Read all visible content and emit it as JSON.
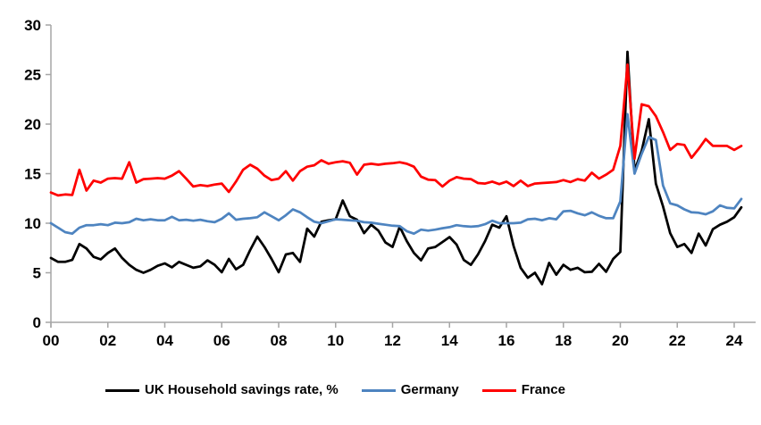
{
  "chart_data": {
    "type": "line",
    "title": "",
    "xlabel": "",
    "ylabel": "",
    "frequency": "quarterly",
    "x_start": "2000Q1",
    "x_end": "2024Q2",
    "x_tick_labels": [
      "00",
      "02",
      "04",
      "06",
      "08",
      "10",
      "12",
      "14",
      "16",
      "18",
      "20",
      "22",
      "24"
    ],
    "y_ticks": [
      0,
      5,
      10,
      15,
      20,
      25,
      30
    ],
    "ylim": [
      0,
      30
    ],
    "grid": false,
    "legend_position": "bottom",
    "axis_color": "#A6A6A6",
    "series": [
      {
        "name": "UK Household savings rate, %",
        "color": "#000000",
        "values": [
          6.5,
          6.1,
          6.1,
          6.3,
          7.9,
          7.45,
          6.6,
          6.35,
          7.0,
          7.45,
          6.5,
          5.8,
          5.3,
          5.0,
          5.3,
          5.7,
          5.95,
          5.55,
          6.1,
          5.8,
          5.5,
          5.65,
          6.25,
          5.8,
          5.05,
          6.4,
          5.35,
          5.8,
          7.3,
          8.65,
          7.6,
          6.4,
          5.05,
          6.85,
          7.0,
          6.1,
          9.45,
          8.65,
          10.15,
          10.3,
          10.4,
          12.3,
          10.7,
          10.35,
          9.0,
          9.85,
          9.25,
          8.05,
          7.6,
          9.65,
          8.2,
          7.0,
          6.25,
          7.45,
          7.6,
          8.1,
          8.6,
          7.85,
          6.3,
          5.8,
          6.85,
          8.2,
          9.85,
          9.55,
          10.7,
          7.7,
          5.5,
          4.5,
          5.0,
          3.85,
          6.0,
          4.8,
          5.8,
          5.3,
          5.5,
          5.05,
          5.1,
          5.9,
          5.1,
          6.4,
          7.1,
          27.3,
          15.3,
          17.3,
          20.5,
          14.0,
          11.7,
          9.0,
          7.6,
          7.9,
          7.0,
          8.95,
          7.75,
          9.4,
          9.85,
          10.15,
          10.6,
          11.6
        ]
      },
      {
        "name": "Germany",
        "color": "#4E84C0",
        "values": [
          10.0,
          9.55,
          9.1,
          8.95,
          9.55,
          9.8,
          9.8,
          9.9,
          9.8,
          10.05,
          10.0,
          10.1,
          10.45,
          10.3,
          10.4,
          10.3,
          10.3,
          10.65,
          10.3,
          10.35,
          10.25,
          10.35,
          10.2,
          10.1,
          10.45,
          11.0,
          10.35,
          10.45,
          10.5,
          10.6,
          11.1,
          10.7,
          10.3,
          10.8,
          11.4,
          11.1,
          10.6,
          10.15,
          10.0,
          10.2,
          10.4,
          10.35,
          10.3,
          10.25,
          10.1,
          10.05,
          9.95,
          9.85,
          9.75,
          9.7,
          9.2,
          8.95,
          9.35,
          9.25,
          9.35,
          9.5,
          9.6,
          9.8,
          9.7,
          9.65,
          9.7,
          9.9,
          10.25,
          10.0,
          10.0,
          10.0,
          10.05,
          10.4,
          10.45,
          10.3,
          10.5,
          10.4,
          11.2,
          11.25,
          11.0,
          10.8,
          11.1,
          10.75,
          10.5,
          10.5,
          12.2,
          21.0,
          15.0,
          17.0,
          18.7,
          18.4,
          13.8,
          12.0,
          11.8,
          11.4,
          11.1,
          11.05,
          10.9,
          11.2,
          11.8,
          11.55,
          11.5,
          12.45
        ]
      },
      {
        "name": "France",
        "color": "#FF0000",
        "values": [
          13.1,
          12.8,
          12.9,
          12.85,
          15.4,
          13.3,
          14.3,
          14.1,
          14.5,
          14.55,
          14.5,
          16.15,
          14.1,
          14.45,
          14.5,
          14.55,
          14.5,
          14.8,
          15.25,
          14.5,
          13.7,
          13.85,
          13.75,
          13.9,
          14.0,
          13.15,
          14.2,
          15.4,
          15.9,
          15.5,
          14.8,
          14.35,
          14.5,
          15.25,
          14.3,
          15.25,
          15.7,
          15.85,
          16.35,
          16.0,
          16.15,
          16.25,
          16.1,
          14.9,
          15.9,
          16.0,
          15.9,
          16.0,
          16.05,
          16.15,
          16.0,
          15.7,
          14.7,
          14.4,
          14.35,
          13.7,
          14.3,
          14.65,
          14.5,
          14.45,
          14.05,
          14.0,
          14.2,
          13.95,
          14.2,
          13.75,
          14.3,
          13.75,
          14.0,
          14.05,
          14.1,
          14.15,
          14.35,
          14.15,
          14.45,
          14.3,
          15.1,
          14.5,
          14.9,
          15.4,
          17.8,
          26.0,
          16.5,
          22.0,
          21.8,
          20.8,
          19.2,
          17.4,
          18.0,
          17.9,
          16.6,
          17.5,
          18.5,
          17.8,
          17.8,
          17.8,
          17.4,
          17.8
        ]
      }
    ]
  },
  "legend": {
    "items": [
      {
        "label": "UK Household savings rate, %"
      },
      {
        "label": "Germany"
      },
      {
        "label": "France"
      }
    ]
  }
}
